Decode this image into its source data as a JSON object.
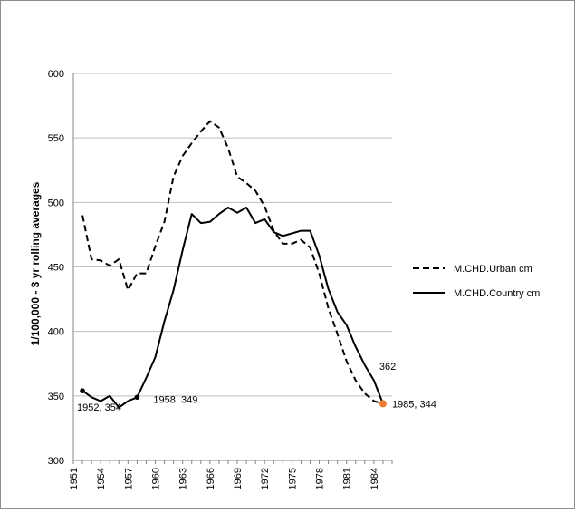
{
  "chart_data": {
    "type": "line",
    "title": "",
    "xlabel": "",
    "ylabel": "1/100,000 - 3 yr rolling averages",
    "ylim": [
      300,
      600
    ],
    "yticks": [
      300,
      350,
      400,
      450,
      500,
      550,
      600
    ],
    "xlim": [
      1951,
      1986
    ],
    "xticks": [
      "1951",
      "1954",
      "1957",
      "1960",
      "1963",
      "1966",
      "1969",
      "1972",
      "1975",
      "1978",
      "1981",
      "1984"
    ],
    "grid": "horizontal",
    "legend_position": "right",
    "x": [
      1952,
      1953,
      1954,
      1955,
      1956,
      1957,
      1958,
      1959,
      1960,
      1961,
      1962,
      1963,
      1964,
      1965,
      1966,
      1967,
      1968,
      1969,
      1970,
      1971,
      1972,
      1973,
      1974,
      1975,
      1976,
      1977,
      1978,
      1979,
      1980,
      1981,
      1982,
      1983,
      1984,
      1985
    ],
    "series": [
      {
        "name": "M.CHD.Urban cm",
        "style": "dashed",
        "color": "#000000",
        "values": [
          490,
          456,
          455,
          451,
          456,
          432,
          445,
          445,
          466,
          485,
          520,
          536,
          546,
          555,
          563,
          558,
          542,
          520,
          515,
          509,
          497,
          478,
          468,
          468,
          471,
          465,
          445,
          418,
          398,
          377,
          362,
          352,
          346,
          344
        ]
      },
      {
        "name": "M.CHD.Country cm",
        "style": "solid",
        "color": "#000000",
        "values": [
          354,
          349,
          346,
          350,
          341,
          346,
          349,
          364,
          380,
          408,
          432,
          463,
          491,
          484,
          485,
          491,
          496,
          492,
          496,
          484,
          487,
          477,
          474,
          476,
          478,
          478,
          459,
          433,
          415,
          405,
          388,
          374,
          362,
          344
        ]
      }
    ],
    "annotations": [
      {
        "label": "1952, 354",
        "x": 1952,
        "y": 354,
        "marker": "#000000"
      },
      {
        "label": "1958, 349",
        "x": 1958,
        "y": 349,
        "marker": "#000000"
      },
      {
        "label": "1985, 344",
        "x": 1985,
        "y": 344,
        "marker": "#ed7d31"
      },
      {
        "label": "362",
        "x": 1984,
        "y": 362,
        "marker": ""
      }
    ]
  }
}
